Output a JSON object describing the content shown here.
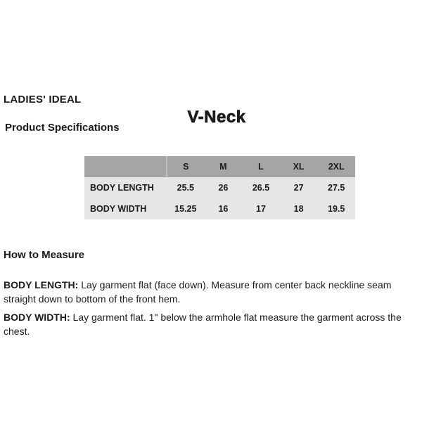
{
  "header": {
    "brand": "LADIES' IDEAL",
    "product": "V-Neck",
    "section": "Product Specifications"
  },
  "spec_table": {
    "columns": [
      "",
      "S",
      "M",
      "L",
      "XL",
      "2XL"
    ],
    "rows": [
      {
        "label": "BODY LENGTH",
        "values": [
          "25.5",
          "26",
          "26.5",
          "27",
          "27.5"
        ]
      },
      {
        "label": "BODY WIDTH",
        "values": [
          "15.25",
          "16",
          "17",
          "18",
          "19.5"
        ]
      }
    ]
  },
  "how_to_measure": {
    "title": "How to Measure",
    "items": [
      {
        "term": "BODY LENGTH:",
        "description": "Lay garment flat (face down). Measure from center back neckline seam straight down to bottom of the front hem."
      },
      {
        "term": "BODY WIDTH:",
        "description": "Lay garment flat. 1\" below the armhole flat measure the garment across the chest."
      }
    ]
  },
  "colors": {
    "table_header_bg": "#a5a5a6",
    "table_row_bg": "#e6e6e6",
    "text": "#1b1b1b",
    "page_bg": "#ffffff"
  }
}
